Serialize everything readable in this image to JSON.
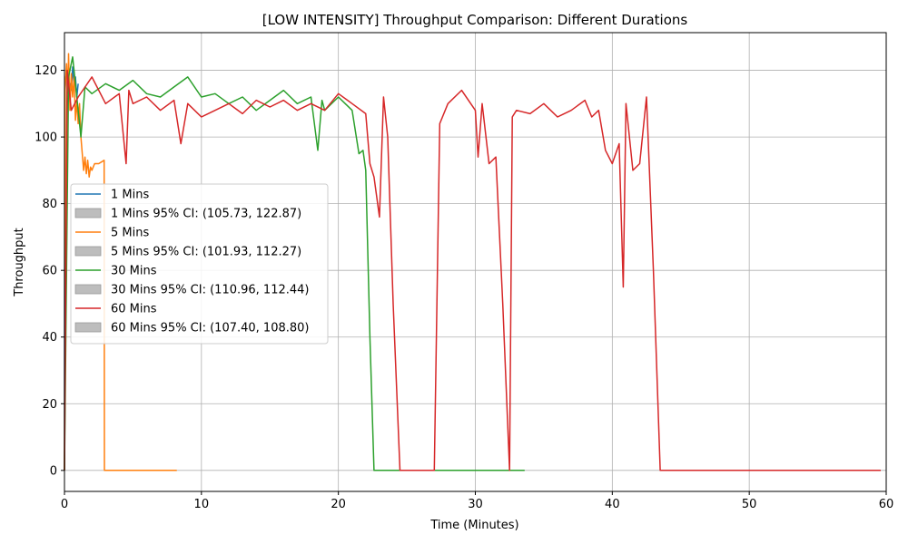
{
  "chart_data": {
    "type": "line",
    "title": "[LOW INTENSITY] Throughput Comparison: Different Durations",
    "xlabel": "Time (Minutes)",
    "ylabel": "Throughput",
    "xlim": [
      0,
      60
    ],
    "ylim": [
      -6.3,
      131.3
    ],
    "xticks": [
      0,
      10,
      20,
      30,
      40,
      50,
      60
    ],
    "yticks": [
      0,
      20,
      40,
      60,
      80,
      100,
      120
    ],
    "grid": true,
    "legend_position": "center-left",
    "series": [
      {
        "name": "1 Mins",
        "color": "#1f77b4",
        "ci_label": "1 Mins 95% CI: (105.73, 122.87)",
        "points": [
          [
            0,
            0
          ],
          [
            0.02,
            112
          ],
          [
            0.1,
            118
          ],
          [
            0.2,
            120
          ],
          [
            0.3,
            113
          ],
          [
            0.4,
            116
          ],
          [
            0.5,
            114
          ],
          [
            0.6,
            121
          ],
          [
            0.7,
            115
          ],
          [
            0.8,
            118
          ],
          [
            0.9,
            112
          ],
          [
            1.0,
            116
          ]
        ]
      },
      {
        "name": "5 Mins",
        "color": "#ff7f0e",
        "ci_label": "5 Mins 95% CI: (101.93, 112.27)",
        "points": [
          [
            0,
            0
          ],
          [
            0.05,
            115
          ],
          [
            0.15,
            122
          ],
          [
            0.25,
            113
          ],
          [
            0.3,
            125
          ],
          [
            0.4,
            108
          ],
          [
            0.5,
            119
          ],
          [
            0.6,
            112
          ],
          [
            0.7,
            118
          ],
          [
            0.8,
            105
          ],
          [
            0.9,
            111
          ],
          [
            1.0,
            104
          ],
          [
            1.1,
            110
          ],
          [
            1.2,
            100
          ],
          [
            1.3,
            95
          ],
          [
            1.4,
            90
          ],
          [
            1.5,
            94
          ],
          [
            1.6,
            89
          ],
          [
            1.7,
            93
          ],
          [
            1.8,
            88
          ],
          [
            1.9,
            91
          ],
          [
            2.0,
            90
          ],
          [
            2.2,
            92
          ],
          [
            2.5,
            92
          ],
          [
            2.9,
            93
          ],
          [
            2.92,
            0
          ],
          [
            8.2,
            0
          ]
        ]
      },
      {
        "name": "30 Mins",
        "color": "#2ca02c",
        "ci_label": "30 Mins 95% CI: (110.96, 112.44)",
        "points": [
          [
            0,
            0
          ],
          [
            0.3,
            118
          ],
          [
            0.6,
            124
          ],
          [
            1.0,
            108
          ],
          [
            1.2,
            100
          ],
          [
            1.5,
            115
          ],
          [
            2,
            113
          ],
          [
            3,
            116
          ],
          [
            4,
            114
          ],
          [
            5,
            117
          ],
          [
            6,
            113
          ],
          [
            7,
            112
          ],
          [
            8,
            115
          ],
          [
            9,
            118
          ],
          [
            10,
            112
          ],
          [
            11,
            113
          ],
          [
            12,
            110
          ],
          [
            13,
            112
          ],
          [
            14,
            108
          ],
          [
            15,
            111
          ],
          [
            16,
            114
          ],
          [
            17,
            110
          ],
          [
            18,
            112
          ],
          [
            18.5,
            96
          ],
          [
            18.8,
            111
          ],
          [
            19,
            108
          ],
          [
            19.5,
            110
          ],
          [
            20,
            112
          ],
          [
            20.5,
            110
          ],
          [
            21,
            108
          ],
          [
            21.5,
            95
          ],
          [
            21.8,
            96
          ],
          [
            22.0,
            90
          ],
          [
            22.3,
            40
          ],
          [
            22.6,
            0
          ],
          [
            33.6,
            0
          ]
        ]
      },
      {
        "name": "60 Mins",
        "color": "#d62728",
        "ci_label": "60 Mins 95% CI: (107.40, 108.80)",
        "points": [
          [
            0,
            0
          ],
          [
            0.2,
            120
          ],
          [
            0.5,
            108
          ],
          [
            1,
            112
          ],
          [
            2,
            118
          ],
          [
            3,
            110
          ],
          [
            4,
            113
          ],
          [
            4.5,
            92
          ],
          [
            4.7,
            114
          ],
          [
            5,
            110
          ],
          [
            6,
            112
          ],
          [
            7,
            108
          ],
          [
            8,
            111
          ],
          [
            8.5,
            98
          ],
          [
            9,
            110
          ],
          [
            10,
            106
          ],
          [
            11,
            108
          ],
          [
            12,
            110
          ],
          [
            13,
            107
          ],
          [
            14,
            111
          ],
          [
            15,
            109
          ],
          [
            16,
            111
          ],
          [
            17,
            108
          ],
          [
            18,
            110
          ],
          [
            19,
            108
          ],
          [
            20,
            113
          ],
          [
            21,
            110
          ],
          [
            22,
            107
          ],
          [
            22.3,
            92
          ],
          [
            22.6,
            88
          ],
          [
            23.0,
            76
          ],
          [
            23.3,
            112
          ],
          [
            23.6,
            100
          ],
          [
            24.0,
            50
          ],
          [
            24.5,
            0
          ],
          [
            27.0,
            0
          ],
          [
            27.4,
            104
          ],
          [
            28,
            110
          ],
          [
            29,
            114
          ],
          [
            30,
            108
          ],
          [
            30.2,
            94
          ],
          [
            30.5,
            110
          ],
          [
            31,
            92
          ],
          [
            31.5,
            94
          ],
          [
            32.0,
            50
          ],
          [
            32.5,
            0
          ],
          [
            32.7,
            106
          ],
          [
            33,
            108
          ],
          [
            34,
            107
          ],
          [
            35,
            110
          ],
          [
            36,
            106
          ],
          [
            37,
            108
          ],
          [
            38,
            111
          ],
          [
            38.5,
            106
          ],
          [
            39,
            108
          ],
          [
            39.5,
            96
          ],
          [
            40,
            92
          ],
          [
            40.5,
            98
          ],
          [
            40.8,
            55
          ],
          [
            41,
            110
          ],
          [
            41.5,
            90
          ],
          [
            42,
            92
          ],
          [
            42.5,
            112
          ],
          [
            43,
            60
          ],
          [
            43.5,
            0
          ],
          [
            59.6,
            0
          ]
        ]
      }
    ]
  }
}
